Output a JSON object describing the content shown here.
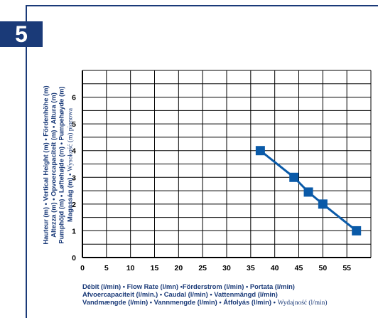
{
  "badge": "5",
  "ylabel_lines": [
    "Hauteur (m) • Vertical Height (m) • Fördenhöhe (m)",
    "Altezza (m) • Opvoercapaciteit (m) • Altura (m)",
    "Pumphöjd (m) • Løftehøjde (m) • Pumpehøyde (m)",
    "Magasság (m) • "
  ],
  "ylabel_last_normal": "Wysokość (m) pionowa",
  "xlabel_lines": [
    "Débit (l/min) • Flow Rate (l/mn) •Förderstrom (l/min) • Portata (l/min)",
    "Afvoercapaciteit (l/min.) • Caudal (l/min) • Vattenmängd (l/min)",
    "Vandmængde (l/min) •  Vannmengde (l/min) • Átfolyás (l/min) • "
  ],
  "xlabel_last_normal": "Wydajność (l/min)",
  "colors": {
    "accent": "#1a3a78",
    "series": "#0a5aa8",
    "grid": "#000000"
  },
  "chart_data": {
    "type": "line",
    "xlim": [
      0,
      60
    ],
    "ylim": [
      0,
      7
    ],
    "x_ticks": [
      "0",
      "5",
      "10",
      "15",
      "20",
      "25",
      "30",
      "35",
      "40",
      "45",
      "50",
      "55"
    ],
    "y_ticks": [
      "0",
      "1",
      "2",
      "3",
      "4",
      "5",
      "6"
    ],
    "grid": true,
    "series": [
      {
        "x": [
          37,
          44,
          47,
          50,
          57
        ],
        "y": [
          4,
          3,
          2.45,
          2,
          1
        ]
      }
    ]
  }
}
